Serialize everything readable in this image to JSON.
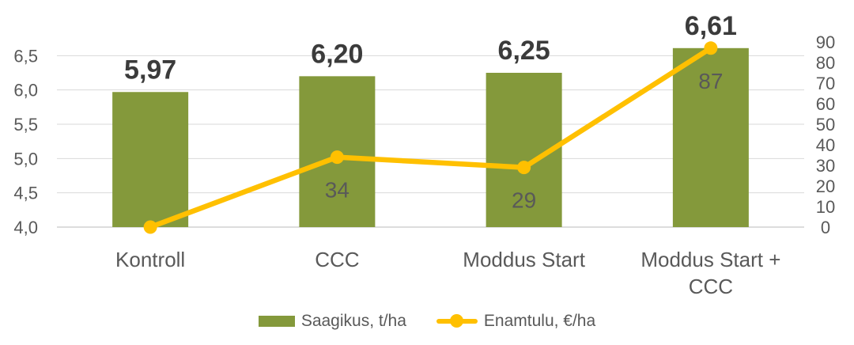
{
  "colors": {
    "bar": "#84993B",
    "line": "#FFC000",
    "gridline": "#D9D9D9",
    "baseline": "#D2D2D2",
    "axis_text": "#595959",
    "bar_label_text": "#3B3B3B",
    "background": "#FFFFFF"
  },
  "chart_data": {
    "type": "bar+line combo",
    "categories": [
      "Kontroll",
      "CCC",
      "Moddus Start",
      "Moddus Start + CCC"
    ],
    "category_lines": [
      [
        "Kontroll"
      ],
      [
        "CCC"
      ],
      [
        "Moddus Start"
      ],
      [
        "Moddus Start +",
        "CCC"
      ]
    ],
    "series": [
      {
        "name": "Saagikus, t/ha",
        "type": "bar",
        "axis": "left",
        "values": [
          5.97,
          6.2,
          6.25,
          6.61
        ],
        "labels": [
          "5,97",
          "6,20",
          "6,25",
          "6,61"
        ]
      },
      {
        "name": "Enamtulu, €/ha",
        "type": "line",
        "axis": "right",
        "values": [
          0,
          34,
          29,
          87
        ],
        "labels": [
          "",
          "34",
          "29",
          "87"
        ]
      }
    ],
    "left_axis": {
      "min": 4.0,
      "max": 7.0,
      "ticks": [
        "6,5",
        "6,0",
        "5,5",
        "5,0",
        "4,5",
        "4,0"
      ],
      "tick_values": [
        6.5,
        6.0,
        5.5,
        5.0,
        4.5,
        4.0
      ]
    },
    "right_axis": {
      "min": 0,
      "max": 100,
      "ticks": [
        "90",
        "80",
        "70",
        "60",
        "50",
        "40",
        "30",
        "20",
        "10",
        "0"
      ],
      "tick_values": [
        90,
        80,
        70,
        60,
        50,
        40,
        30,
        20,
        10,
        0
      ]
    },
    "legend": [
      "Saagikus, t/ha",
      "Enamtulu, €/ha"
    ],
    "legend_position": "bottom",
    "grid": "horizontal"
  }
}
